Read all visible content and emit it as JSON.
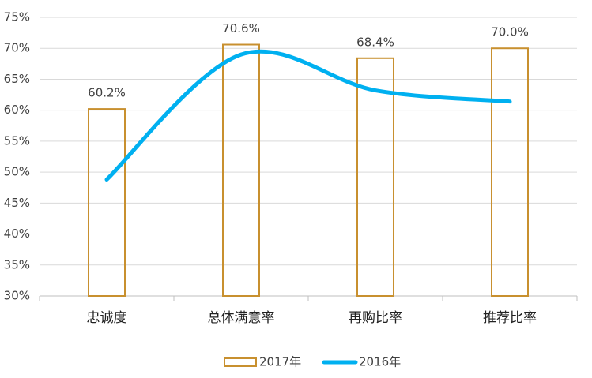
{
  "chart_data": {
    "type": "bar-line",
    "categories": [
      "忠诚度",
      "总体满意率",
      "再购比率",
      "推荐比率"
    ],
    "series": [
      {
        "name": "2017年",
        "type": "bar",
        "color": "#c8902f",
        "values": [
          60.2,
          70.6,
          68.4,
          70.0
        ],
        "value_labels": [
          "60.2%",
          "70.6%",
          "68.4%",
          "70.0%"
        ]
      },
      {
        "name": "2016年",
        "type": "line",
        "color": "#00b0f0",
        "values": [
          48.8,
          69.0,
          63.2,
          61.4
        ]
      }
    ],
    "ylim": [
      30,
      75
    ],
    "yticks": [
      {
        "value": 30,
        "label": "30%"
      },
      {
        "value": 35,
        "label": "35%"
      },
      {
        "value": 40,
        "label": "40%"
      },
      {
        "value": 45,
        "label": "45%"
      },
      {
        "value": 50,
        "label": "50%"
      },
      {
        "value": 55,
        "label": "55%"
      },
      {
        "value": 60,
        "label": "60%"
      },
      {
        "value": 65,
        "label": "65%"
      },
      {
        "value": 70,
        "label": "70%"
      },
      {
        "value": 75,
        "label": "75%"
      }
    ],
    "grid": true,
    "legend": "bottom"
  }
}
